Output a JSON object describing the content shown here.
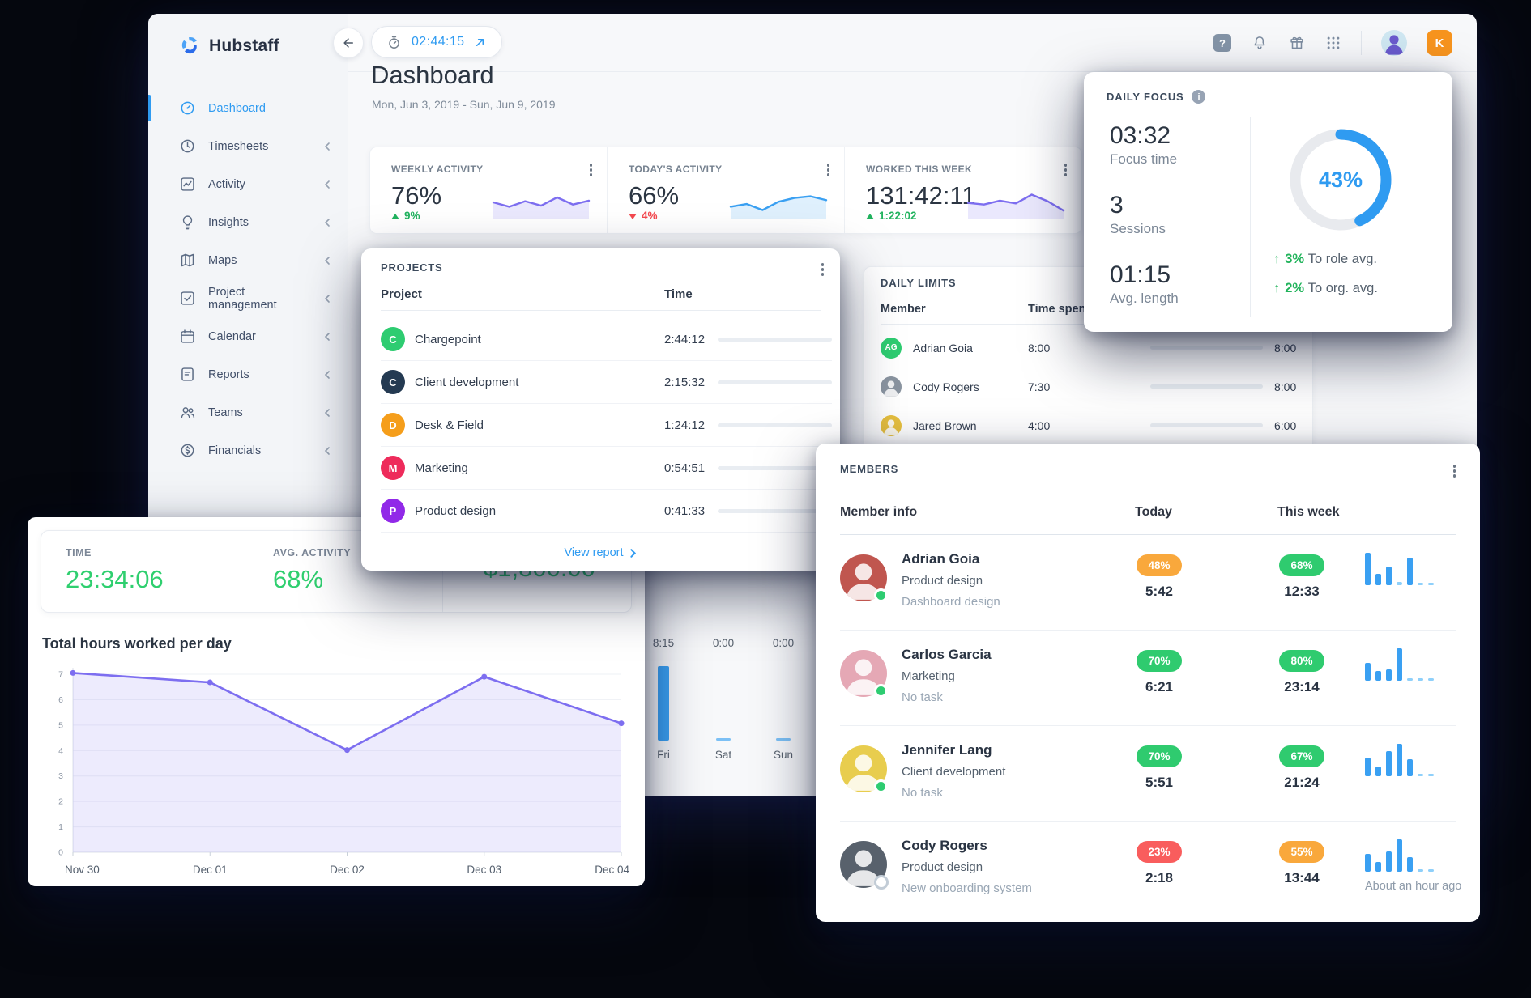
{
  "window": {
    "brand": "Hubstaff"
  },
  "topbar": {
    "timer": "02:44:15",
    "user_initial": "K"
  },
  "sidebar": {
    "items": [
      {
        "label": "Dashboard"
      },
      {
        "label": "Timesheets"
      },
      {
        "label": "Activity"
      },
      {
        "label": "Insights"
      },
      {
        "label": "Maps"
      },
      {
        "label": "Project management"
      },
      {
        "label": "Calendar"
      },
      {
        "label": "Reports"
      },
      {
        "label": "Teams"
      },
      {
        "label": "Financials"
      }
    ]
  },
  "header": {
    "title": "Dashboard",
    "date_range": "Mon, Jun 3, 2019 - Sun, Jun 9, 2019"
  },
  "stats": {
    "cards": [
      {
        "label": "WEEKLY ACTIVITY",
        "value": "76%",
        "delta": "9%",
        "direction": "up",
        "spark_color": "#7d6ef0",
        "spark": [
          50,
          34,
          54,
          38,
          68,
          42,
          56
        ]
      },
      {
        "label": "TODAY'S ACTIVITY",
        "value": "66%",
        "delta": "4%",
        "direction": "down",
        "spark_color": "#3aa0f2",
        "spark": [
          34,
          44,
          22,
          52,
          66,
          72,
          58
        ]
      },
      {
        "label": "WORKED THIS WEEK",
        "value": "131:42:11",
        "delta": "1:22:02",
        "direction": "up",
        "spark_color": "#7d6ef0",
        "spark": [
          48,
          42,
          56,
          46,
          78,
          54,
          20
        ]
      }
    ]
  },
  "daily_focus": {
    "title": "DAILY FOCUS",
    "focus_time": "03:32",
    "focus_label": "Focus time",
    "sessions": "3",
    "sessions_label": "Sessions",
    "avg_length": "01:15",
    "avg_label": "Avg. length",
    "percent": 43,
    "percent_label": "43%",
    "role_delta": "3%",
    "role_label": "To role avg.",
    "org_delta": "2%",
    "org_label": "To org. avg.",
    "donut_color": "#2f9bf1",
    "track_color": "#e8eaee"
  },
  "projects": {
    "title": "PROJECTS",
    "col_project": "Project",
    "col_time": "Time",
    "rows": [
      {
        "initial": "C",
        "color": "#2ecc71",
        "name": "Chargepoint",
        "time": "2:44:12",
        "pct": 40
      },
      {
        "initial": "C",
        "color": "#243a52",
        "name": "Client development",
        "time": "2:15:32",
        "pct": 35
      },
      {
        "initial": "D",
        "color": "#f59e1b",
        "name": "Desk & Field",
        "time": "1:24:12",
        "pct": 27
      },
      {
        "initial": "M",
        "color": "#ee2b5b",
        "name": "Marketing",
        "time": "0:54:51",
        "pct": 19
      },
      {
        "initial": "P",
        "color": "#9129e8",
        "name": "Product design",
        "time": "0:41:33",
        "pct": 14
      }
    ],
    "footer": "View report"
  },
  "daily_limits": {
    "title": "DAILY LIMITS",
    "col_member": "Member",
    "col_spent": "Time spent",
    "rows": [
      {
        "initials": "AG",
        "avatar_color": "#2ecc71",
        "avatar_type": "initials",
        "name": "Adrian Goia",
        "spent": "8:00",
        "limit": "8:00",
        "pct": 100
      },
      {
        "initials": "CR",
        "avatar_color": "#8a94a0",
        "avatar_type": "photo",
        "name": "Cody Rogers",
        "spent": "7:30",
        "limit": "8:00",
        "pct": 90
      },
      {
        "initials": "JB",
        "avatar_color": "#e8c13f",
        "avatar_type": "photo",
        "name": "Jared Brown",
        "spent": "4:00",
        "limit": "6:00",
        "pct": 81
      }
    ]
  },
  "week_overview": {
    "columns": [
      {
        "value": "8:15",
        "day": "Fri",
        "pct": 100
      },
      {
        "value": "0:00",
        "day": "Sat",
        "pct": 0
      },
      {
        "value": "0:00",
        "day": "Sun",
        "pct": 0
      }
    ]
  },
  "summary": {
    "time_label": "TIME",
    "time_value": "23:34:06",
    "activity_label": "AVG. ACTIVITY",
    "activity_value": "68%",
    "earned_value": "$1,800.00",
    "chart_title": "Total hours worked per day"
  },
  "chart_data": {
    "type": "area",
    "title": "Total hours worked per day",
    "x": [
      "Nov 30",
      "Dec 01",
      "Dec 02",
      "Dec 03",
      "Dec 04"
    ],
    "values": [
      7.05,
      6.68,
      4.02,
      6.9,
      5.07
    ],
    "ylim": [
      0,
      7
    ],
    "yticks": [
      0,
      1,
      2,
      3,
      4,
      5,
      6,
      7
    ],
    "line_color": "#7d6ef0",
    "fill_color": "rgba(125,110,240,0.14)",
    "grid": true
  },
  "members": {
    "title": "MEMBERS",
    "col_member": "Member info",
    "col_today": "Today",
    "col_week": "This week",
    "rows": [
      {
        "name": "Adrian Goia",
        "role": "Product design",
        "task": "Dashboard design",
        "avatar_color": "#c0564f",
        "status": "online",
        "today_pct": "48%",
        "today_color": "#f9a83c",
        "today_time": "5:42",
        "week_pct": "68%",
        "week_color": "#2fcb6f",
        "week_time": "12:33",
        "bars": [
          100,
          34,
          58,
          10,
          84,
          8,
          8
        ],
        "note": ""
      },
      {
        "name": "Carlos Garcia",
        "role": "Marketing",
        "task": "No task",
        "avatar_color": "#e5a8b5",
        "status": "online",
        "today_pct": "70%",
        "today_color": "#2fcb6f",
        "today_time": "6:21",
        "week_pct": "80%",
        "week_color": "#2fcb6f",
        "week_time": "23:14",
        "bars": [
          56,
          30,
          36,
          100,
          8,
          8,
          8
        ],
        "note": ""
      },
      {
        "name": "Jennifer Lang",
        "role": "Client development",
        "task": "No task",
        "avatar_color": "#e8cd4e",
        "status": "online",
        "today_pct": "70%",
        "today_color": "#2fcb6f",
        "today_time": "5:51",
        "week_pct": "67%",
        "week_color": "#2fcb6f",
        "week_time": "21:24",
        "bars": [
          58,
          30,
          78,
          100,
          52,
          8,
          8
        ],
        "note": ""
      },
      {
        "name": "Cody Rogers",
        "role": "Product design",
        "task": "New onboarding system",
        "avatar_color": "#58616c",
        "status": "offline",
        "today_pct": "23%",
        "today_color": "#f95d5d",
        "today_time": "2:18",
        "week_pct": "55%",
        "week_color": "#f9a83c",
        "week_time": "13:44",
        "bars": [
          56,
          30,
          62,
          100,
          46,
          8,
          8
        ],
        "note": "About an hour ago"
      }
    ]
  },
  "colors": {
    "accent_blue": "#2f9bf1",
    "green": "#2fcb6f",
    "orange": "#f9a83c",
    "red": "#f95d5d",
    "purple": "#7d6ef0",
    "bar_blue": "#3aa0f2"
  }
}
